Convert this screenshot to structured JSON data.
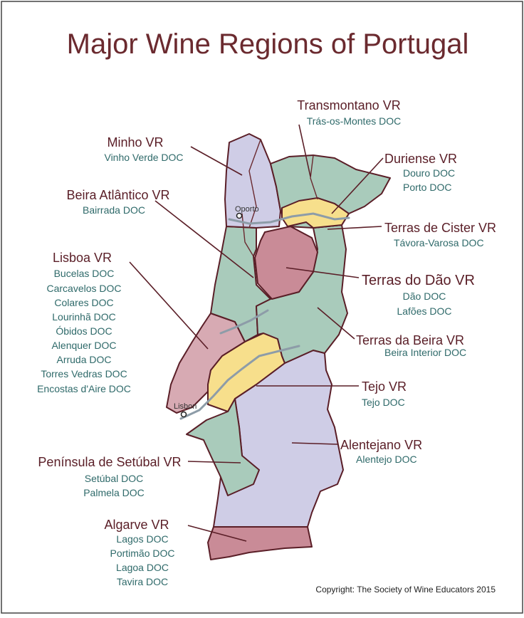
{
  "title": "Major Wine Regions of Portugal",
  "copyright": "Copyright: The Society of Wine Educators 2015",
  "cities": {
    "oporto": "Oporto",
    "lisbon": "Lisbon"
  },
  "colors": {
    "border": "#5a1e27",
    "green": "#a9cbbb",
    "lavender": "#cfcde6",
    "rose": "#c98b97",
    "pink": "#d7aab3",
    "yellow": "#f7df8c",
    "label": "#5a1e27",
    "doc": "#2f6a6a"
  },
  "regions": [
    {
      "vr": "Transmontano VR",
      "docs": [
        "Trás-os-Montes DOC"
      ]
    },
    {
      "vr": "Minho VR",
      "docs": [
        "Vinho Verde DOC"
      ]
    },
    {
      "vr": "Duriense VR",
      "docs": [
        "Douro DOC",
        "Porto DOC"
      ]
    },
    {
      "vr": "Beira Atlântico VR",
      "docs": [
        "Bairrada DOC"
      ]
    },
    {
      "vr": "Terras de Cister VR",
      "docs": [
        "Távora-Varosa DOC"
      ]
    },
    {
      "vr": "Lisboa VR",
      "docs": [
        "Bucelas DOC",
        "Carcavelos DOC",
        "Colares DOC",
        "Lourinhã DOC",
        "Óbidos DOC",
        "Alenquer DOC",
        "Arruda DOC",
        "Torres Vedras DOC",
        "Encostas d'Aire DOC"
      ]
    },
    {
      "vr": "Terras do Dão VR",
      "docs": [
        "Dão DOC",
        "Lafões DOC"
      ]
    },
    {
      "vr": "Terras da Beira VR",
      "docs": [
        "Beira Interior DOC"
      ]
    },
    {
      "vr": "Tejo VR",
      "docs": [
        "Tejo DOC"
      ]
    },
    {
      "vr": "Alentejano VR",
      "docs": [
        "Alentejo DOC"
      ]
    },
    {
      "vr": "Península de Setúbal VR",
      "docs": [
        "Setúbal DOC",
        "Palmela DOC"
      ]
    },
    {
      "vr": "Algarve VR",
      "docs": [
        "Lagos DOC",
        "Portimão DOC",
        "Lagoa DOC",
        "Tavira DOC"
      ]
    }
  ]
}
